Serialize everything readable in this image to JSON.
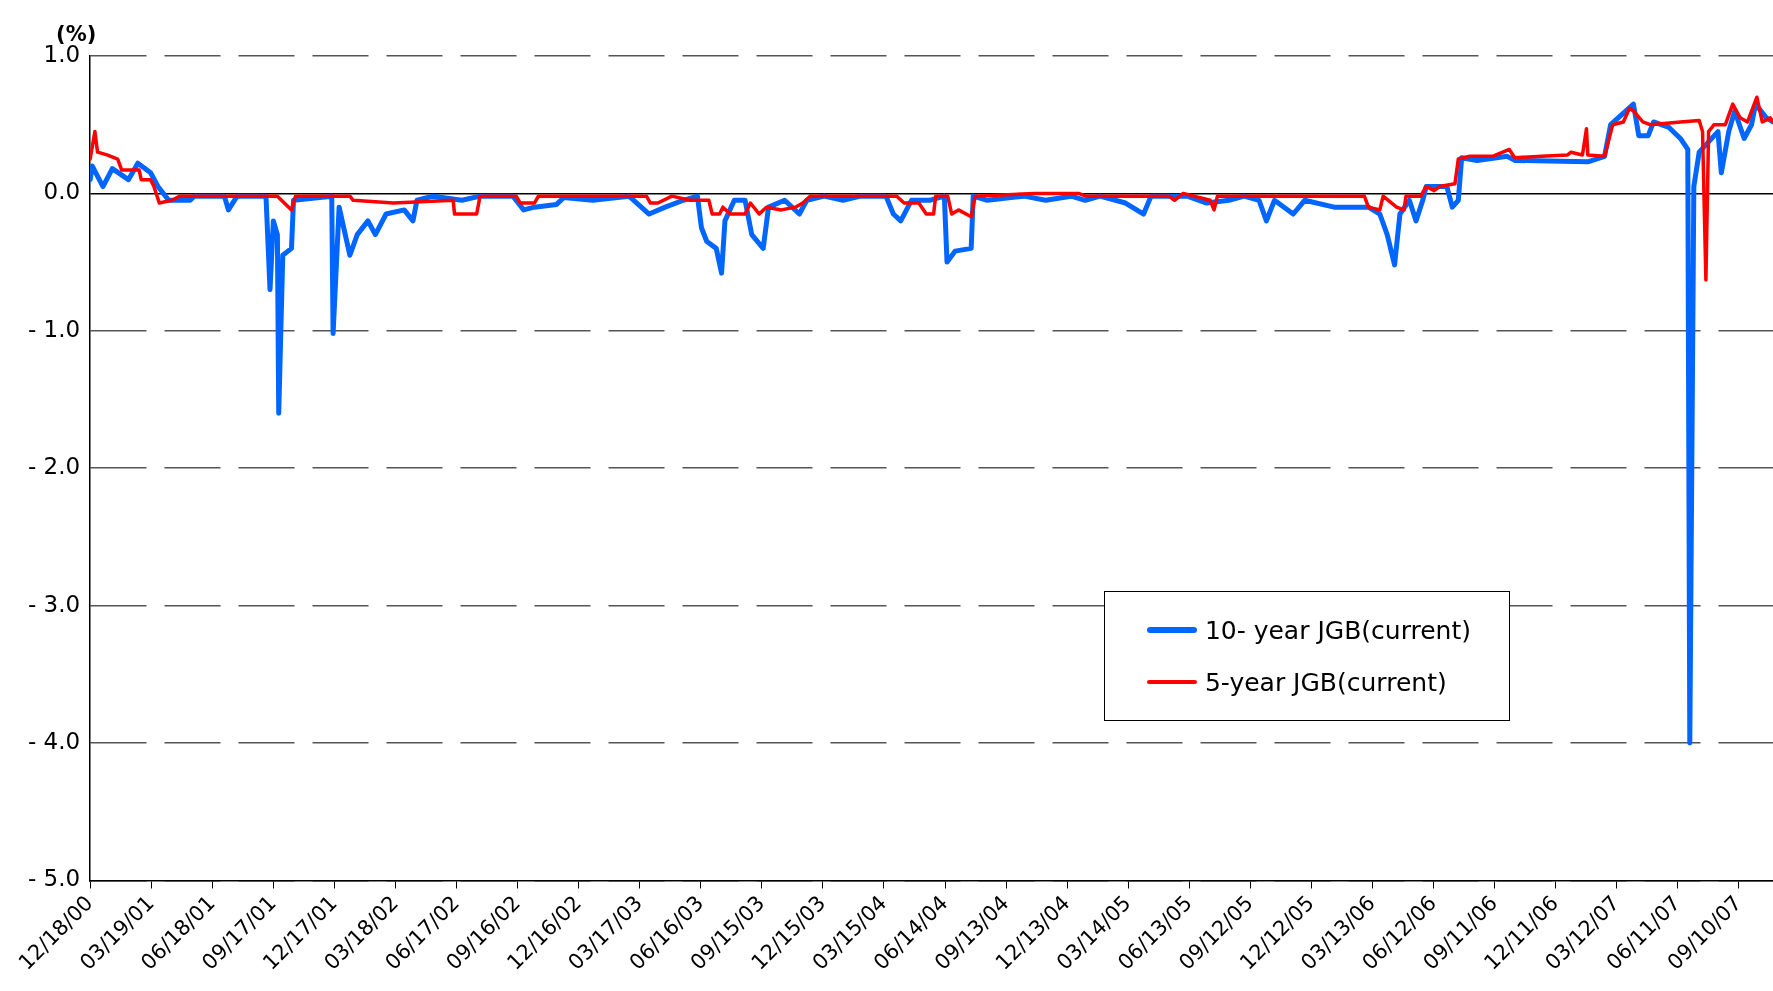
{
  "chart_data": {
    "type": "line",
    "ylabel": "(%)",
    "grid": "y",
    "legend": "bottom right",
    "marker": "none",
    "line_style": "solid",
    "xlim": [
      "2000-12-18",
      "2007-10-31"
    ],
    "xticks": [
      {
        "value": "2000-12-18",
        "label": "12/18/00"
      },
      {
        "value": "2001-03-19",
        "label": "03/19/01"
      },
      {
        "value": "2001-06-18",
        "label": "06/18/01"
      },
      {
        "value": "2001-09-17",
        "label": "09/17/01"
      },
      {
        "value": "2001-12-17",
        "label": "12/17/01"
      },
      {
        "value": "2002-03-18",
        "label": "03/18/02"
      },
      {
        "value": "2002-06-17",
        "label": "06/17/02"
      },
      {
        "value": "2002-09-16",
        "label": "09/16/02"
      },
      {
        "value": "2002-12-16",
        "label": "12/16/02"
      },
      {
        "value": "2003-03-17",
        "label": "03/17/03"
      },
      {
        "value": "2003-06-16",
        "label": "06/16/03"
      },
      {
        "value": "2003-09-15",
        "label": "09/15/03"
      },
      {
        "value": "2003-12-15",
        "label": "12/15/03"
      },
      {
        "value": "2004-03-15",
        "label": "03/15/04"
      },
      {
        "value": "2004-06-14",
        "label": "06/14/04"
      },
      {
        "value": "2004-09-13",
        "label": "09/13/04"
      },
      {
        "value": "2004-12-13",
        "label": "12/13/04"
      },
      {
        "value": "2005-03-14",
        "label": "03/14/05"
      },
      {
        "value": "2005-06-13",
        "label": "06/13/05"
      },
      {
        "value": "2005-09-12",
        "label": "09/12/05"
      },
      {
        "value": "2005-12-12",
        "label": "12/12/05"
      },
      {
        "value": "2006-03-13",
        "label": "03/13/06"
      },
      {
        "value": "2006-06-12",
        "label": "06/12/06"
      },
      {
        "value": "2006-09-11",
        "label": "09/11/06"
      },
      {
        "value": "2006-12-11",
        "label": "12/11/06"
      },
      {
        "value": "2007-03-12",
        "label": "03/12/07"
      },
      {
        "value": "2007-06-11",
        "label": "06/11/07"
      },
      {
        "value": "2007-09-10",
        "label": "09/10/07"
      }
    ],
    "ylim": [
      -5,
      1
    ],
    "yticks": [
      {
        "value": -5,
        "label": "- 5.0"
      },
      {
        "value": -4,
        "label": "- 4.0"
      },
      {
        "value": -3,
        "label": "- 3.0"
      },
      {
        "value": -2,
        "label": "- 2.0"
      },
      {
        "value": -1,
        "label": "- 1.0"
      },
      {
        "value": 0,
        "label": "0.0"
      },
      {
        "value": 1,
        "label": "1.0"
      }
    ],
    "series": [
      {
        "name": "10- year JGB(current)",
        "color": "#0066ff",
        "x": [
          "2000-12-18",
          "2000-12-21",
          "2001-01-06",
          "2001-01-20",
          "2001-02-13",
          "2001-02-27",
          "2001-03-18",
          "2001-03-29",
          "2001-04-14",
          "2001-05-16",
          "2001-05-22",
          "2001-07-06",
          "2001-07-12",
          "2001-07-25",
          "2001-09-06",
          "2001-09-12",
          "2001-09-17",
          "2001-09-23",
          "2001-09-25",
          "2001-10-01",
          "2001-10-14",
          "2001-10-17",
          "2001-12-13",
          "2001-12-15",
          "2001-12-24",
          "2002-01-09",
          "2002-01-20",
          "2002-02-05",
          "2002-02-16",
          "2002-03-04",
          "2002-03-31",
          "2002-04-13",
          "2002-04-19",
          "2002-05-13",
          "2002-06-25",
          "2002-07-22",
          "2002-09-09",
          "2002-09-25",
          "2002-10-11",
          "2002-11-13",
          "2002-11-24",
          "2003-01-06",
          "2003-03-01",
          "2003-03-31",
          "2003-04-24",
          "2003-05-21",
          "2003-06-11",
          "2003-06-17",
          "2003-06-25",
          "2003-07-09",
          "2003-07-17",
          "2003-07-22",
          "2003-08-05",
          "2003-08-21",
          "2003-08-31",
          "2003-09-17",
          "2003-09-25",
          "2003-10-19",
          "2003-11-10",
          "2003-11-21",
          "2003-12-17",
          "2004-01-14",
          "2004-02-09",
          "2004-03-18",
          "2004-03-29",
          "2004-04-09",
          "2004-04-25",
          "2004-05-22",
          "2004-06-13",
          "2004-06-17",
          "2004-06-29",
          "2004-07-23",
          "2004-07-26",
          "2004-08-16",
          "2004-10-10",
          "2004-11-11",
          "2004-12-19",
          "2005-01-09",
          "2005-01-31",
          "2005-03-10",
          "2005-04-06",
          "2005-04-17",
          "2005-06-10",
          "2005-07-09",
          "2005-08-11",
          "2005-09-03",
          "2005-09-25",
          "2005-10-06",
          "2005-10-18",
          "2005-11-15",
          "2005-12-02",
          "2006-01-15",
          "2006-03-07",
          "2006-03-24",
          "2006-04-04",
          "2006-04-15",
          "2006-04-23",
          "2006-05-07",
          "2006-05-17",
          "2006-05-27",
          "2006-06-01",
          "2006-07-02",
          "2006-07-10",
          "2006-07-19",
          "2006-07-24",
          "2006-08-16",
          "2006-09-30",
          "2006-10-11",
          "2007-01-28",
          "2007-02-22",
          "2007-03-03",
          "2007-04-06",
          "2007-04-14",
          "2007-04-28",
          "2007-05-06",
          "2007-05-29",
          "2007-06-15",
          "2007-06-26",
          "2007-06-29",
          "2007-07-05",
          "2007-07-13",
          "2007-08-10",
          "2007-08-15",
          "2007-08-26",
          "2007-09-04",
          "2007-09-18",
          "2007-09-29",
          "2007-10-05",
          "2007-10-21",
          "2007-10-31"
        ],
        "values": [
          0.1,
          0.2,
          0.05,
          0.18,
          0.1,
          0.22,
          0.15,
          0.05,
          -0.05,
          -0.05,
          -0.02,
          -0.02,
          -0.12,
          -0.02,
          -0.02,
          -0.7,
          -0.2,
          -0.3,
          -1.6,
          -0.45,
          -0.4,
          -0.05,
          -0.02,
          -1.02,
          -0.1,
          -0.45,
          -0.3,
          -0.2,
          -0.3,
          -0.15,
          -0.12,
          -0.2,
          -0.05,
          -0.02,
          -0.05,
          -0.02,
          -0.02,
          -0.12,
          -0.1,
          -0.08,
          -0.03,
          -0.05,
          -0.02,
          -0.15,
          -0.1,
          -0.05,
          -0.02,
          -0.25,
          -0.35,
          -0.4,
          -0.58,
          -0.2,
          -0.05,
          -0.05,
          -0.3,
          -0.4,
          -0.1,
          -0.05,
          -0.15,
          -0.05,
          -0.02,
          -0.05,
          -0.02,
          -0.02,
          -0.15,
          -0.2,
          -0.05,
          -0.05,
          -0.02,
          -0.5,
          -0.42,
          -0.4,
          -0.02,
          -0.05,
          -0.02,
          -0.05,
          -0.02,
          -0.05,
          -0.02,
          -0.07,
          -0.15,
          -0.02,
          -0.02,
          -0.07,
          -0.05,
          -0.02,
          -0.05,
          -0.2,
          -0.05,
          -0.15,
          -0.05,
          -0.1,
          -0.1,
          -0.15,
          -0.3,
          -0.52,
          -0.15,
          -0.05,
          -0.2,
          -0.05,
          0.05,
          0.05,
          -0.1,
          -0.05,
          0.26,
          0.24,
          0.27,
          0.24,
          0.23,
          0.27,
          0.5,
          0.65,
          0.42,
          0.42,
          0.52,
          0.48,
          0.4,
          0.32,
          -4.0,
          0.05,
          0.3,
          0.45,
          0.15,
          0.45,
          0.6,
          0.4,
          0.5,
          0.65,
          0.55,
          0.52
        ]
      },
      {
        "name": "5-year JGB(current)",
        "color": "#ff0000",
        "x": [
          "2000-12-18",
          "2000-12-25",
          "2000-12-29",
          "2001-01-12",
          "2001-01-28",
          "2001-02-03",
          "2001-03-01",
          "2001-03-04",
          "2001-03-18",
          "2001-03-23",
          "2001-03-31",
          "2001-04-19",
          "2001-04-30",
          "2001-09-23",
          "2001-10-14",
          "2001-10-20",
          "2002-01-09",
          "2002-01-14",
          "2002-03-15",
          "2002-06-12",
          "2002-06-14",
          "2002-07-17",
          "2002-07-22",
          "2002-09-14",
          "2002-09-20",
          "2002-10-11",
          "2002-10-17",
          "2003-03-27",
          "2003-04-02",
          "2003-04-13",
          "2003-05-04",
          "2003-05-31",
          "2003-06-28",
          "2003-07-03",
          "2003-07-14",
          "2003-07-19",
          "2003-07-30",
          "2003-08-21",
          "2003-08-29",
          "2003-09-11",
          "2003-09-22",
          "2003-10-14",
          "2003-11-04",
          "2003-11-15",
          "2003-11-26",
          "2004-04-03",
          "2004-04-14",
          "2004-05-06",
          "2004-05-17",
          "2004-05-28",
          "2004-05-31",
          "2004-06-18",
          "2004-06-24",
          "2004-07-04",
          "2004-07-23",
          "2004-07-29",
          "2004-10-26",
          "2004-12-30",
          "2005-01-10",
          "2005-05-14",
          "2005-05-22",
          "2005-06-04",
          "2005-06-20",
          "2005-07-14",
          "2005-07-20",
          "2005-07-25",
          "2006-03-01",
          "2006-03-07",
          "2006-03-24",
          "2006-03-29",
          "2006-04-18",
          "2006-04-29",
          "2006-05-02",
          "2006-05-24",
          "2006-06-01",
          "2006-06-13",
          "2006-06-21",
          "2006-07-14",
          "2006-07-19",
          "2006-08-05",
          "2006-09-08",
          "2006-10-03",
          "2006-10-11",
          "2006-11-20",
          "2006-12-29",
          "2007-01-03",
          "2007-01-20",
          "2007-01-26",
          "2007-01-28",
          "2007-02-22",
          "2007-03-06",
          "2007-03-22",
          "2007-03-31",
          "2007-04-06",
          "2007-04-20",
          "2007-05-01",
          "2007-06-15",
          "2007-07-13",
          "2007-07-18",
          "2007-07-23",
          "2007-07-27",
          "2007-08-04",
          "2007-08-21",
          "2007-09-01",
          "2007-09-12",
          "2007-09-23",
          "2007-10-07",
          "2007-10-15",
          "2007-10-27",
          "2007-10-31"
        ],
        "values": [
          0.25,
          0.45,
          0.3,
          0.28,
          0.25,
          0.17,
          0.17,
          0.1,
          0.1,
          0.05,
          -0.07,
          -0.05,
          -0.02,
          -0.02,
          -0.12,
          -0.02,
          -0.02,
          -0.05,
          -0.07,
          -0.05,
          -0.15,
          -0.15,
          -0.02,
          -0.02,
          -0.07,
          -0.07,
          -0.02,
          -0.02,
          -0.07,
          -0.07,
          -0.02,
          -0.05,
          -0.05,
          -0.15,
          -0.15,
          -0.1,
          -0.15,
          -0.15,
          -0.07,
          -0.15,
          -0.1,
          -0.12,
          -0.1,
          -0.07,
          -0.02,
          -0.02,
          -0.07,
          -0.07,
          -0.15,
          -0.15,
          -0.02,
          -0.02,
          -0.15,
          -0.12,
          -0.17,
          -0.02,
          0.0,
          0.0,
          -0.02,
          -0.02,
          -0.05,
          0.0,
          -0.02,
          -0.05,
          -0.12,
          -0.02,
          -0.02,
          -0.1,
          -0.12,
          -0.02,
          -0.1,
          -0.12,
          -0.02,
          -0.02,
          0.05,
          0.02,
          0.05,
          0.07,
          0.25,
          0.27,
          0.27,
          0.32,
          0.26,
          0.27,
          0.28,
          0.3,
          0.28,
          0.47,
          0.28,
          0.27,
          0.5,
          0.52,
          0.62,
          0.6,
          0.52,
          0.5,
          0.52,
          0.53,
          0.45,
          -0.63,
          0.45,
          0.5,
          0.5,
          0.65,
          0.55,
          0.52,
          0.7,
          0.52,
          0.55,
          0.52
        ]
      }
    ]
  }
}
